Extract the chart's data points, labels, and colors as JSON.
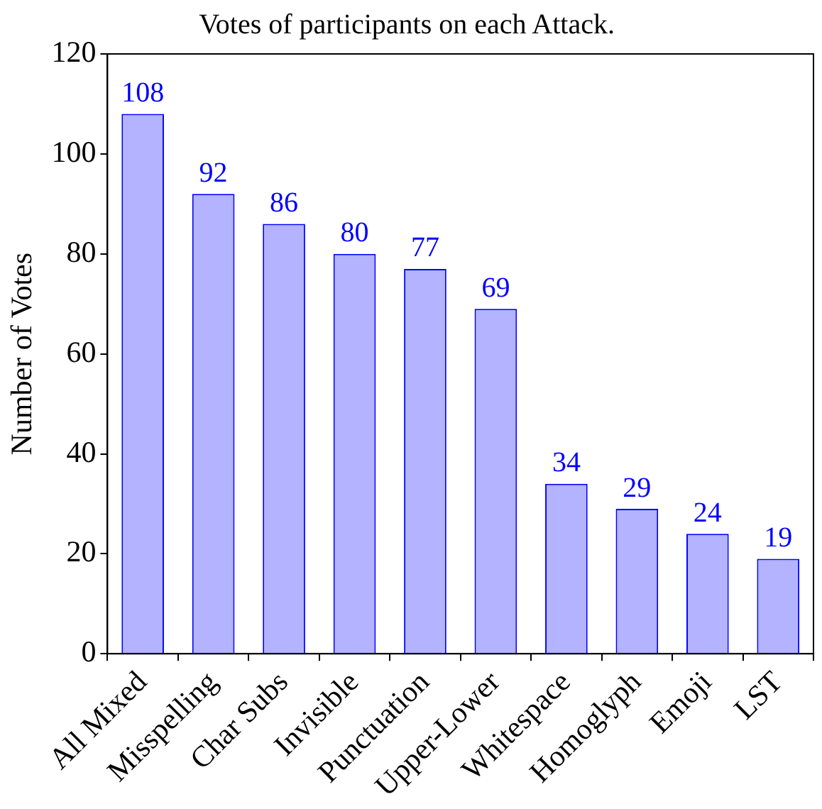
{
  "chart_data": {
    "type": "bar",
    "title": "Votes of participants on each Attack.",
    "ylabel": "Number of Votes",
    "categories": [
      "All Mixed",
      "Misspelling",
      "Char Subs",
      "Invisible",
      "Punctuation",
      "Upper-Lower",
      "Whitespace",
      "Homoglyph",
      "Emoji",
      "LST"
    ],
    "values": [
      108,
      92,
      86,
      80,
      77,
      69,
      34,
      29,
      24,
      19
    ],
    "color": "#b3b3ff",
    "ylim": [
      0,
      120
    ],
    "yticks": [
      0,
      20,
      40,
      60,
      80,
      100,
      120
    ],
    "grid": false,
    "legend": false,
    "data_labels": true
  }
}
